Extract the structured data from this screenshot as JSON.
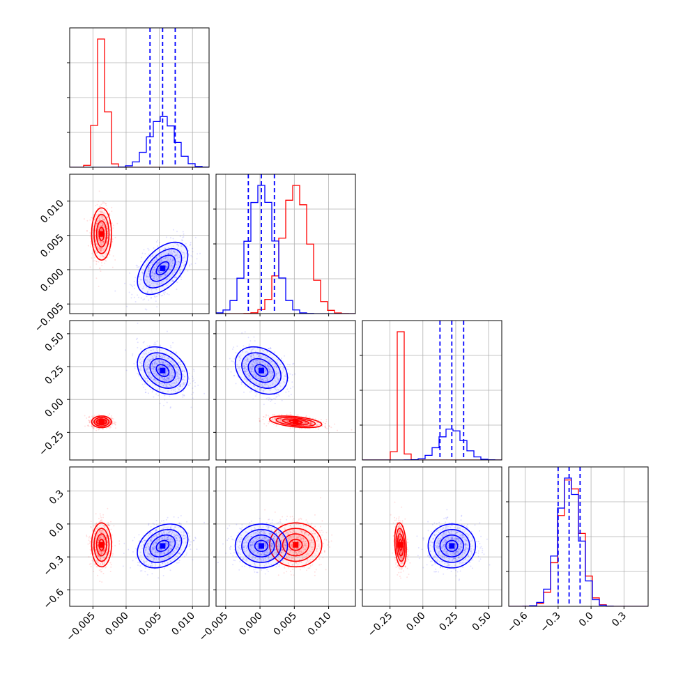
{
  "chart_data": {
    "type": "corner",
    "title": "",
    "parameters": [
      {
        "range": [
          -0.0085,
          0.0125
        ],
        "ticks": [
          -0.005,
          0.0,
          0.005,
          0.01
        ],
        "tick_labels": [
          "−0.005",
          "0.000",
          "0.005",
          "0.010"
        ]
      },
      {
        "range": [
          -0.0064,
          0.0139
        ],
        "ticks": [
          -0.005,
          0.0,
          0.005,
          0.01
        ],
        "tick_labels": [
          "−0.005",
          "0.000",
          "0.005",
          "0.010"
        ]
      },
      {
        "range": [
          -0.46,
          0.6
        ],
        "ticks": [
          -0.25,
          0.0,
          0.25,
          0.5
        ],
        "tick_labels": [
          "−0.25",
          "0.00",
          "0.25",
          "0.50"
        ]
      },
      {
        "range": [
          -0.75,
          0.52
        ],
        "ticks": [
          -0.6,
          -0.3,
          0.0,
          0.3
        ],
        "tick_labels": [
          "−0.6",
          "−0.3",
          "0.0",
          "0.3"
        ]
      }
    ],
    "series": [
      {
        "color": "#ff0000",
        "mean": [
          -0.0037,
          0.0052,
          -0.17,
          -0.19
        ],
        "std": [
          0.00075,
          0.0019,
          0.022,
          0.1
        ],
        "quantile_lines": false
      },
      {
        "color": "#0000ff",
        "mean": [
          0.0055,
          0.0002,
          0.22,
          -0.2
        ],
        "std": [
          0.0019,
          0.0019,
          0.09,
          0.1
        ],
        "quantile_lines": true
      }
    ],
    "quantiles": [
      0.16,
      0.5,
      0.84
    ],
    "grid": true,
    "legend": "none"
  },
  "colors": {
    "red": "#ff0000",
    "blue": "#0000ff",
    "grid": "#b0b0b0"
  }
}
